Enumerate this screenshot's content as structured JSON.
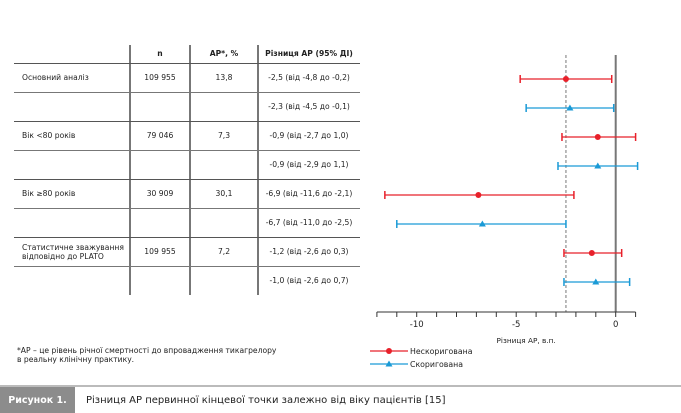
{
  "table": {
    "headers": [
      "n",
      "АР*, %",
      "Різниця АР (95% ДІ)"
    ],
    "rows": [
      {
        "label": "Основний аналіз",
        "n": "109 955",
        "ar": "13,8",
        "diff": "-2,5 (від -4,8 до -0,2)"
      },
      {
        "label": "",
        "n": "",
        "ar": "",
        "diff": "-2,3 (від -4,5 до -0,1)"
      },
      {
        "label": "Вік <80 років",
        "n": "79 046",
        "ar": "7,3",
        "diff": "-0,9 (від -2,7 до 1,0)"
      },
      {
        "label": "",
        "n": "",
        "ar": "",
        "diff": "-0,9 (від -2,9 до 1,1)"
      },
      {
        "label": "Вік ≥80 років",
        "n": "30 909",
        "ar": "30,1",
        "diff": "-6,9 (від -11,6 до -2,1)"
      },
      {
        "label": "",
        "n": "",
        "ar": "",
        "diff": "-6,7 (від -11,0 до -2,5)"
      },
      {
        "label": "Статистичне зважування",
        "label2": "відповідно до PLATO",
        "n": "109 955",
        "ar": "7,2",
        "diff": "-1,2 (від -2,6 до 0,3)"
      },
      {
        "label": "",
        "n": "",
        "ar": "",
        "diff": "-1,0 (від -2,6 до 0,7)"
      }
    ]
  },
  "footnote": {
    "line1": "*АР – це рівень річної смертності до впровадження тикагрелору",
    "line2": "в реальну клінічну практику."
  },
  "chart_data": {
    "type": "forest",
    "xlabel": "Різниця АР, в.п.",
    "xlim": [
      -12,
      1
    ],
    "xticks": [
      -10,
      -5,
      0
    ],
    "xtick_labels": [
      "-10",
      "-5",
      "0"
    ],
    "reference_line": -2.5,
    "null_line": 0,
    "series": [
      {
        "name": "Нескоригована",
        "color": "#e8202a",
        "marker": "circle"
      },
      {
        "name": "Скоригована",
        "color": "#1a9ad6",
        "marker": "triangle"
      }
    ],
    "points": [
      {
        "series": 0,
        "est": -2.5,
        "lo": -4.8,
        "hi": -0.2
      },
      {
        "series": 1,
        "est": -2.3,
        "lo": -4.5,
        "hi": -0.1
      },
      {
        "series": 0,
        "est": -0.9,
        "lo": -2.7,
        "hi": 1.0
      },
      {
        "series": 1,
        "est": -0.9,
        "lo": -2.9,
        "hi": 1.1
      },
      {
        "series": 0,
        "est": -6.9,
        "lo": -11.6,
        "hi": -2.1
      },
      {
        "series": 1,
        "est": -6.7,
        "lo": -11.0,
        "hi": -2.5
      },
      {
        "series": 0,
        "est": -1.2,
        "lo": -2.6,
        "hi": 0.3
      },
      {
        "series": 1,
        "est": -1.0,
        "lo": -2.6,
        "hi": 0.7
      }
    ]
  },
  "caption": {
    "label": "Рисунок 1.",
    "title": "Різниця АР первинної кінцевої точки залежно від віку пацієнтів [15]"
  }
}
